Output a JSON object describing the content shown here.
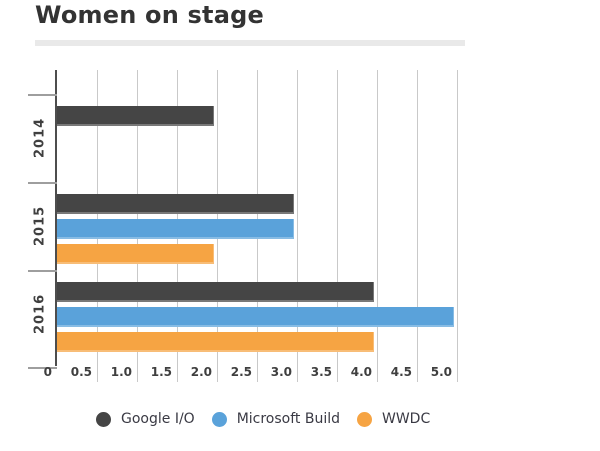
{
  "page": {
    "title": "Women on stage"
  },
  "chart_data": {
    "type": "bar",
    "orientation": "horizontal",
    "title": "Women on stage",
    "categories": [
      "2014",
      "2015",
      "2016"
    ],
    "series": [
      {
        "name": "Google I/O",
        "color": "#454545",
        "values": [
          2,
          3,
          4
        ]
      },
      {
        "name": "Microsoft Build",
        "color": "#5AA2DA",
        "values": [
          0,
          3,
          5
        ]
      },
      {
        "name": "WWDC",
        "color": "#F6A443",
        "values": [
          0,
          2,
          4
        ]
      }
    ],
    "xlim": [
      0,
      5
    ],
    "x_tick_step": 0.5,
    "x_tick_labels": [
      "0",
      "0.5",
      "1.0",
      "1.5",
      "2.0",
      "2.5",
      "3.0",
      "3.5",
      "4.0",
      "4.5",
      "5.0"
    ],
    "grid": true,
    "legend_position": "bottom"
  },
  "colors": {
    "gridline": "#C9C9C9",
    "axis": "#4D4D4D",
    "group_tick": "#9E9E9E",
    "title_text": "#333333",
    "axis_text": "#3F3F3F",
    "legend_text": "#3A3A44",
    "divider": "#E9E9E9",
    "background": "#FFFFFF"
  }
}
